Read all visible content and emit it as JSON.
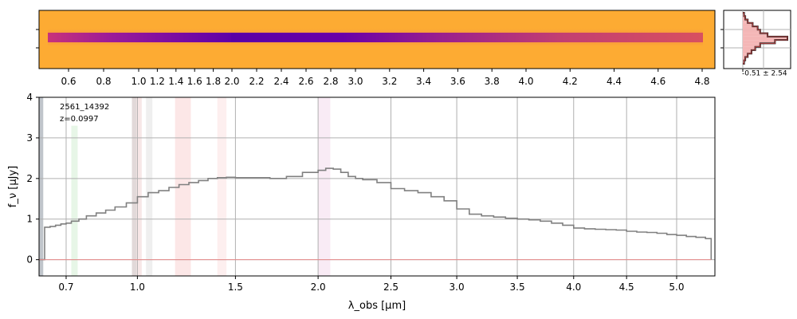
{
  "chart_data": [
    {
      "type": "heatmap",
      "name": "2D spectrum",
      "x_tick_labels": [
        "0.6",
        "0.8",
        "1.0",
        "1.2",
        "1.4",
        "1.6",
        "1.8",
        "2.0",
        "2.2",
        "2.4",
        "2.6",
        "2.8",
        "3.0",
        "3.2",
        "3.4",
        "3.6",
        "3.8",
        "4.0",
        "4.2",
        "4.4",
        "4.6",
        "4.8"
      ],
      "x_ticks": [
        0.6,
        0.8,
        1.0,
        1.2,
        1.4,
        1.6,
        1.8,
        2.0,
        2.2,
        2.4,
        2.6,
        2.8,
        3.0,
        3.2,
        3.4,
        3.6,
        3.8,
        4.0,
        4.2,
        4.4,
        4.6,
        4.8
      ],
      "colormap": "plasma",
      "trace_peak_um": 2.0
    },
    {
      "type": "histogram",
      "name": "pixel distribution",
      "annotation": "-0.51 ± 2.54",
      "bin_centers": [
        -4,
        -3,
        -2,
        -1,
        0,
        1,
        2,
        3,
        4,
        5,
        6,
        7,
        8,
        9,
        10
      ],
      "counts": [
        1,
        2,
        4,
        8,
        12,
        14,
        20,
        36,
        26,
        14,
        10,
        7,
        4,
        2,
        1
      ]
    },
    {
      "type": "line",
      "name": "1D spectrum",
      "object_id": "2561_14392",
      "redshift_label": "z=0.0997",
      "xlabel": "λ_obs [μm]",
      "ylabel": "f_ν [μJy]",
      "xlim": [
        0.6,
        5.4
      ],
      "ylim": [
        -0.4,
        4
      ],
      "xscale": "sqrt",
      "x_ticks": [
        0.7,
        1.0,
        1.5,
        2.0,
        2.5,
        3.0,
        3.5,
        4.0,
        4.5,
        5.0
      ],
      "x_tick_labels": [
        "0.7",
        "1.0",
        "1.5",
        "2.0",
        "2.5",
        "3.0",
        "3.5",
        "4.0",
        "4.5",
        "5.0"
      ],
      "y_ticks": [
        0,
        1,
        2,
        3,
        4
      ],
      "y_tick_labels": [
        "0",
        "1",
        "2",
        "3",
        "4"
      ],
      "grid": true,
      "series": [
        {
          "name": "spectrum",
          "color": "#808080",
          "x": [
            0.6,
            0.62,
            0.64,
            0.66,
            0.68,
            0.7,
            0.72,
            0.75,
            0.78,
            0.82,
            0.86,
            0.9,
            0.95,
            1.0,
            1.05,
            1.1,
            1.15,
            1.2,
            1.25,
            1.3,
            1.35,
            1.4,
            1.45,
            1.5,
            1.6,
            1.7,
            1.8,
            1.9,
            2.0,
            2.05,
            2.1,
            2.15,
            2.2,
            2.25,
            2.3,
            2.4,
            2.5,
            2.6,
            2.7,
            2.8,
            2.9,
            3.0,
            3.1,
            3.2,
            3.3,
            3.4,
            3.5,
            3.6,
            3.7,
            3.8,
            3.9,
            4.0,
            4.1,
            4.2,
            4.3,
            4.4,
            4.5,
            4.6,
            4.7,
            4.8,
            4.9,
            5.0,
            5.1,
            5.2,
            5.3,
            5.36
          ],
          "y": [
            0.0,
            0.8,
            0.82,
            0.85,
            0.88,
            0.9,
            0.95,
            1.0,
            1.08,
            1.15,
            1.22,
            1.3,
            1.4,
            1.55,
            1.65,
            1.7,
            1.78,
            1.85,
            1.9,
            1.95,
            2.0,
            2.02,
            2.03,
            2.02,
            2.02,
            2.0,
            2.05,
            2.15,
            2.2,
            2.25,
            2.23,
            2.15,
            2.05,
            2.0,
            1.97,
            1.9,
            1.75,
            1.7,
            1.65,
            1.55,
            1.45,
            1.25,
            1.12,
            1.08,
            1.05,
            1.02,
            1.0,
            0.98,
            0.95,
            0.9,
            0.85,
            0.78,
            0.76,
            0.75,
            0.74,
            0.73,
            0.7,
            0.68,
            0.67,
            0.65,
            0.62,
            0.6,
            0.57,
            0.55,
            0.52,
            0.0
          ]
        },
        {
          "name": "continuum",
          "color": "#e88a8a",
          "x": [
            0.6,
            5.36
          ],
          "y": [
            0.0,
            0.0
          ]
        }
      ],
      "line_bands": [
        {
          "x0": 0.6,
          "x1": 0.615,
          "color": "#4a5a6a",
          "alpha": 0.35,
          "y0": -0.4,
          "y1": 4.0
        },
        {
          "x0": 0.72,
          "x1": 0.745,
          "color": "#9fdd9f",
          "alpha": 0.25,
          "y0": -0.4,
          "y1": 3.3
        },
        {
          "x0": 0.975,
          "x1": 0.995,
          "color": "#a08080",
          "alpha": 0.3,
          "y0": -0.4,
          "y1": 4.0
        },
        {
          "x0": 0.995,
          "x1": 1.02,
          "color": "#e0a0a0",
          "alpha": 0.25,
          "y0": -0.4,
          "y1": 4.0
        },
        {
          "x0": 1.04,
          "x1": 1.07,
          "color": "#b0b0b0",
          "alpha": 0.2,
          "y0": -0.4,
          "y1": 4.0
        },
        {
          "x0": 1.18,
          "x1": 1.26,
          "color": "#f4a0a0",
          "alpha": 0.25,
          "y0": -0.4,
          "y1": 4.0
        },
        {
          "x0": 1.4,
          "x1": 1.45,
          "color": "#f4b0b0",
          "alpha": 0.2,
          "y0": -0.4,
          "y1": 4.0
        },
        {
          "x0": 2.0,
          "x1": 2.08,
          "color": "#e8b0d8",
          "alpha": 0.25,
          "y0": -0.4,
          "y1": 4.0
        }
      ]
    }
  ]
}
